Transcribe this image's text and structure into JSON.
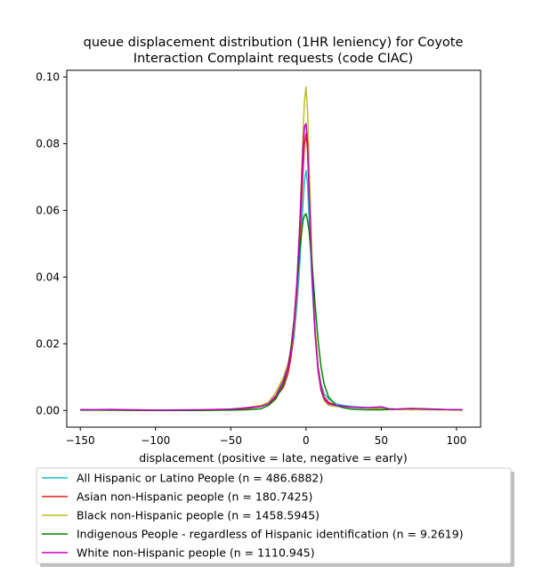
{
  "chart_data": {
    "type": "line",
    "title_lines": [
      "queue displacement distribution (1HR leniency) for Coyote",
      "Interaction Complaint  requests (code CIAC)"
    ],
    "xlabel": "displacement (positive = late, negative = early)",
    "ylabel": "",
    "xlim": [
      -159,
      116
    ],
    "ylim": [
      -0.005,
      0.102
    ],
    "xticks": [
      -150,
      -100,
      -50,
      0,
      50,
      100
    ],
    "xtick_labels": [
      "−150",
      "−100",
      "−50",
      "0",
      "50",
      "100"
    ],
    "yticks": [
      0.0,
      0.02,
      0.04,
      0.06,
      0.08,
      0.1
    ],
    "ytick_labels": [
      "0.00",
      "0.02",
      "0.04",
      "0.06",
      "0.08",
      "0.10"
    ],
    "grid": false,
    "legend_position": "below",
    "series": [
      {
        "name": "All Hispanic or Latino People (n = 486.6882)",
        "color": "#17becf",
        "x": [
          -150,
          -130,
          -100,
          -70,
          -50,
          -40,
          -30,
          -25,
          -20,
          -15,
          -12,
          -10,
          -8,
          -6,
          -4,
          -2,
          -1,
          0,
          1,
          2,
          4,
          6,
          8,
          10,
          12,
          15,
          20,
          25,
          30,
          40,
          50,
          60,
          70,
          80,
          90,
          104
        ],
        "y": [
          0.0003,
          0.0002,
          0.0,
          0.0001,
          0.0003,
          0.0006,
          0.0012,
          0.002,
          0.004,
          0.008,
          0.012,
          0.016,
          0.022,
          0.032,
          0.045,
          0.062,
          0.069,
          0.072,
          0.068,
          0.058,
          0.038,
          0.023,
          0.013,
          0.008,
          0.005,
          0.0035,
          0.002,
          0.0015,
          0.0012,
          0.0009,
          0.0006,
          0.0004,
          0.0003,
          0.0003,
          0.0003,
          0.0002
        ]
      },
      {
        "name": "Asian non-Hispanic people (n = 180.7425)",
        "color": "#e41a1c",
        "x": [
          -150,
          -130,
          -100,
          -70,
          -50,
          -40,
          -30,
          -25,
          -20,
          -15,
          -12,
          -10,
          -8,
          -6,
          -4,
          -2,
          -1,
          0,
          1,
          2,
          4,
          6,
          8,
          10,
          12,
          15,
          20,
          25,
          30,
          40,
          50,
          60,
          70,
          80,
          90,
          104
        ],
        "y": [
          0.0002,
          0.0001,
          0.0,
          0.0001,
          0.0003,
          0.0006,
          0.0012,
          0.002,
          0.004,
          0.007,
          0.011,
          0.016,
          0.024,
          0.036,
          0.052,
          0.072,
          0.08,
          0.083,
          0.078,
          0.066,
          0.043,
          0.025,
          0.013,
          0.007,
          0.004,
          0.0025,
          0.0015,
          0.0012,
          0.001,
          0.0008,
          0.0005,
          0.0003,
          0.0004,
          0.0004,
          0.0003,
          0.0002
        ]
      },
      {
        "name": "Black non-Hispanic people (n = 1458.5945)",
        "color": "#bcbd22",
        "x": [
          -150,
          -130,
          -100,
          -70,
          -50,
          -40,
          -30,
          -25,
          -20,
          -15,
          -12,
          -10,
          -8,
          -6,
          -4,
          -2,
          -1,
          0,
          1,
          2,
          4,
          6,
          8,
          10,
          12,
          15,
          20,
          25,
          30,
          40,
          50,
          60,
          70,
          80,
          90,
          104
        ],
        "y": [
          0.0002,
          0.0002,
          0.0001,
          0.0002,
          0.0004,
          0.0008,
          0.0015,
          0.0025,
          0.0055,
          0.01,
          0.014,
          0.018,
          0.025,
          0.038,
          0.058,
          0.083,
          0.093,
          0.097,
          0.09,
          0.075,
          0.046,
          0.025,
          0.012,
          0.006,
          0.003,
          0.0015,
          0.0012,
          0.0012,
          0.001,
          0.0008,
          0.0005,
          0.0003,
          0.0002,
          0.0002,
          0.0002,
          0.0001
        ]
      },
      {
        "name": "Indigenous People - regardless of Hispanic identification (n = 9.2619)",
        "color": "#008000",
        "x": [
          -150,
          -130,
          -100,
          -70,
          -50,
          -40,
          -30,
          -25,
          -20,
          -15,
          -12,
          -10,
          -8,
          -6,
          -4,
          -2,
          -1,
          0,
          1,
          2,
          4,
          6,
          8,
          10,
          12,
          15,
          20,
          25,
          30,
          40,
          50,
          60,
          70,
          80,
          90,
          104
        ],
        "y": [
          0.0001,
          0.0001,
          0.0,
          0.0,
          0.0001,
          0.0002,
          0.0005,
          0.0015,
          0.0035,
          0.008,
          0.013,
          0.019,
          0.027,
          0.038,
          0.049,
          0.057,
          0.0585,
          0.059,
          0.057,
          0.054,
          0.044,
          0.032,
          0.021,
          0.013,
          0.008,
          0.004,
          0.0015,
          0.0008,
          0.0004,
          0.0002,
          0.0002,
          0.0004,
          0.0006,
          0.0005,
          0.0003,
          0.0002
        ]
      },
      {
        "name": "White non-Hispanic people (n = 1110.945)",
        "color": "#bf00bf",
        "x": [
          -150,
          -130,
          -100,
          -70,
          -50,
          -40,
          -30,
          -25,
          -20,
          -15,
          -12,
          -10,
          -8,
          -6,
          -4,
          -2,
          -1,
          0,
          1,
          2,
          4,
          6,
          8,
          10,
          12,
          15,
          20,
          25,
          30,
          40,
          50,
          55,
          60,
          70,
          80,
          90,
          104
        ],
        "y": [
          0.0002,
          0.0003,
          0.0001,
          0.0002,
          0.0004,
          0.0008,
          0.0012,
          0.002,
          0.0045,
          0.009,
          0.013,
          0.018,
          0.026,
          0.039,
          0.057,
          0.079,
          0.085,
          0.086,
          0.08,
          0.066,
          0.041,
          0.023,
          0.012,
          0.006,
          0.0035,
          0.002,
          0.0015,
          0.0013,
          0.001,
          0.0008,
          0.0011,
          0.0005,
          0.0004,
          0.0006,
          0.0004,
          0.0003,
          0.0002
        ]
      }
    ]
  }
}
